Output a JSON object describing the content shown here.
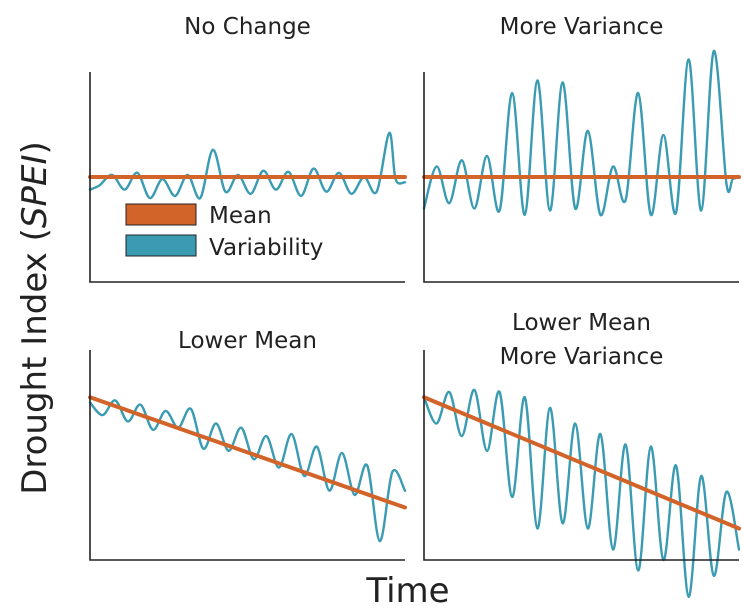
{
  "figure": {
    "ylabel_main": "Drought Index (",
    "ylabel_italic": "SPEI",
    "ylabel_close": ")",
    "xlabel": "Time"
  },
  "legend": {
    "position": "inside top-left panel, lower-left",
    "items": [
      {
        "label": "Mean",
        "color": "#d2642a"
      },
      {
        "label": "Variability",
        "color": "#3a9bb2"
      }
    ]
  },
  "chart_data": [
    {
      "type": "line",
      "title": "No Change",
      "title_lines": [
        "No Change"
      ],
      "xlim": [
        0,
        100
      ],
      "ylim": [
        -1,
        1
      ],
      "grid": false,
      "series": [
        {
          "name": "Mean",
          "color": "#d2642a",
          "x": [
            0,
            100
          ],
          "y": [
            0,
            0
          ]
        },
        {
          "name": "Variability",
          "color": "#3a9bb2",
          "x": [
            0,
            3,
            7,
            11,
            15,
            19,
            23,
            27,
            31,
            35,
            39,
            43,
            47,
            51,
            55,
            59,
            63,
            67,
            71,
            75,
            79,
            83,
            87,
            91,
            95,
            97,
            100
          ],
          "y": [
            -0.12,
            -0.08,
            0.02,
            -0.12,
            0.04,
            -0.2,
            -0.02,
            -0.18,
            0.02,
            -0.2,
            0.26,
            -0.14,
            0.02,
            -0.16,
            0.06,
            -0.12,
            0.05,
            -0.18,
            0.08,
            -0.14,
            0.04,
            -0.16,
            0.0,
            -0.14,
            0.42,
            -0.02,
            -0.05
          ]
        }
      ]
    },
    {
      "type": "line",
      "title": "More Variance",
      "title_lines": [
        "More Variance"
      ],
      "xlim": [
        0,
        100
      ],
      "ylim": [
        -1,
        1
      ],
      "grid": false,
      "series": [
        {
          "name": "Mean",
          "color": "#d2642a",
          "x": [
            0,
            100
          ],
          "y": [
            0,
            0
          ]
        },
        {
          "name": "Variability",
          "color": "#3a9bb2",
          "x": [
            0,
            4,
            8,
            12,
            16,
            20,
            24,
            28,
            32,
            36,
            40,
            44,
            48,
            52,
            56,
            60,
            64,
            68,
            72,
            76,
            80,
            84,
            88,
            92,
            96,
            98,
            100
          ],
          "y": [
            -0.3,
            0.1,
            -0.25,
            0.16,
            -0.3,
            0.2,
            -0.32,
            0.8,
            -0.36,
            0.92,
            -0.32,
            0.9,
            -0.3,
            0.44,
            -0.36,
            0.1,
            -0.22,
            0.8,
            -0.36,
            0.4,
            -0.34,
            1.12,
            -0.32,
            1.2,
            -0.06,
            -0.02,
            0.0
          ]
        }
      ]
    },
    {
      "type": "line",
      "title": "Lower Mean",
      "title_lines": [
        "Lower Mean"
      ],
      "xlim": [
        0,
        100
      ],
      "ylim": [
        -1,
        1
      ],
      "grid": false,
      "series": [
        {
          "name": "Mean",
          "color": "#d2642a",
          "x": [
            0,
            100
          ],
          "y": [
            0.55,
            -0.5
          ]
        },
        {
          "name": "Variability",
          "color": "#3a9bb2",
          "x": [
            0,
            4,
            8,
            12,
            16,
            20,
            24,
            28,
            32,
            36,
            40,
            44,
            48,
            52,
            56,
            60,
            64,
            68,
            72,
            76,
            80,
            84,
            88,
            92,
            96,
            100
          ],
          "y": [
            0.5,
            0.38,
            0.52,
            0.32,
            0.48,
            0.24,
            0.42,
            0.26,
            0.44,
            0.06,
            0.3,
            0.04,
            0.26,
            -0.04,
            0.18,
            -0.12,
            0.2,
            -0.2,
            0.08,
            -0.34,
            0.02,
            -0.38,
            -0.1,
            -0.82,
            -0.16,
            -0.34
          ]
        }
      ]
    },
    {
      "type": "line",
      "title": "Lower Mean More Variance",
      "title_lines": [
        "Lower Mean",
        "More Variance"
      ],
      "xlim": [
        0,
        100
      ],
      "ylim": [
        -1,
        1
      ],
      "grid": false,
      "series": [
        {
          "name": "Mean",
          "color": "#d2642a",
          "x": [
            0,
            100
          ],
          "y": [
            0.55,
            -0.7
          ]
        },
        {
          "name": "Variability",
          "color": "#3a9bb2",
          "x": [
            0,
            4,
            8,
            12,
            16,
            20,
            24,
            28,
            32,
            36,
            40,
            44,
            48,
            52,
            56,
            60,
            64,
            68,
            72,
            76,
            80,
            84,
            88,
            92,
            96,
            100
          ],
          "y": [
            0.55,
            0.3,
            0.6,
            0.18,
            0.62,
            0.04,
            0.6,
            -0.4,
            0.55,
            -0.7,
            0.45,
            -0.65,
            0.3,
            -0.7,
            0.2,
            -0.9,
            0.1,
            -1.1,
            0.08,
            -1.0,
            -0.1,
            -1.35,
            -0.2,
            -1.15,
            -0.35,
            -0.9
          ]
        }
      ]
    }
  ]
}
